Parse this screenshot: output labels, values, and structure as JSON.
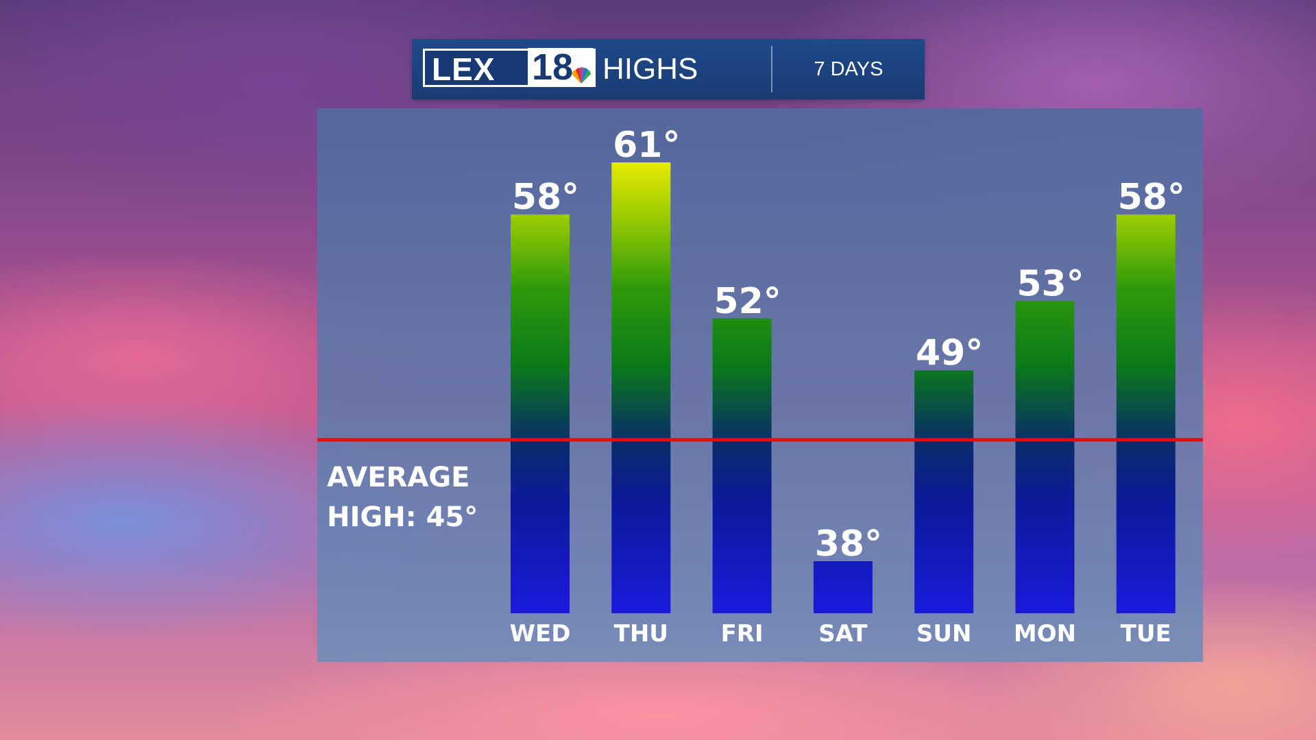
{
  "header": {
    "logo_text": "LEX",
    "logo_number": "18",
    "title": "HIGHS",
    "period": "7 DAYS"
  },
  "average": {
    "label_line1": "AVERAGE",
    "label_line2": "HIGH: 45°",
    "value": 45,
    "line_color": "#e01010"
  },
  "chart_data": {
    "type": "bar",
    "title": "HIGHS",
    "categories": [
      "WED",
      "THU",
      "FRI",
      "SAT",
      "SUN",
      "MON",
      "TUE"
    ],
    "values": [
      58,
      61,
      52,
      38,
      49,
      53,
      58
    ],
    "value_labels": [
      "58°",
      "61°",
      "52°",
      "38°",
      "49°",
      "53°",
      "58°"
    ],
    "unit": "°",
    "reference_line": 45,
    "ylim": [
      35,
      61
    ],
    "colors": {
      "cold": "#1a1adc",
      "mid": "#0b8a0b",
      "warm": "#d8e800"
    },
    "grid": false,
    "legend": "none"
  }
}
